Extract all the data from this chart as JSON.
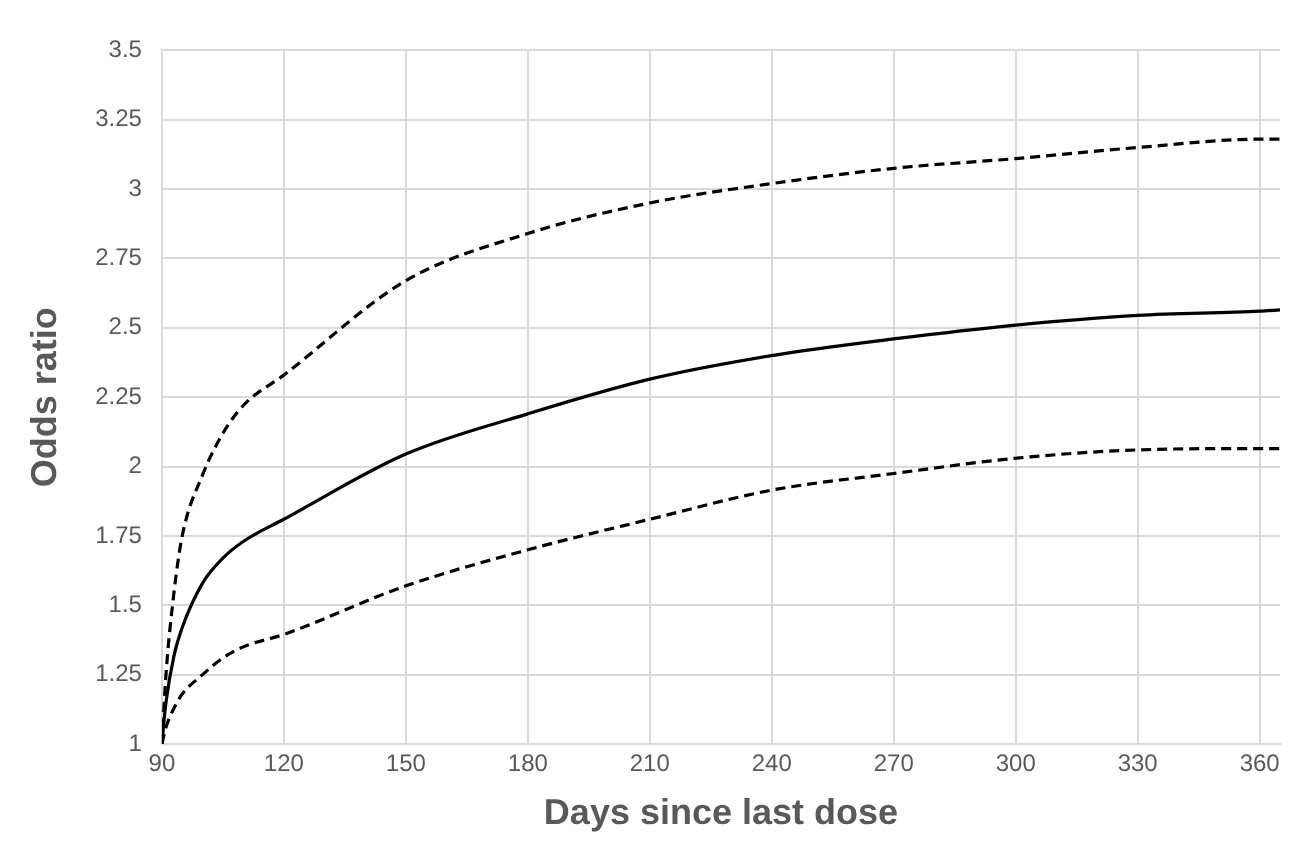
{
  "chart_data": {
    "type": "line",
    "xlabel": "Days since last dose",
    "ylabel": "Odds ratio",
    "xlim": [
      90,
      365
    ],
    "xticks": [
      90,
      120,
      150,
      180,
      210,
      240,
      270,
      300,
      330,
      360
    ],
    "ylim": [
      1,
      3.5
    ],
    "yticks": [
      1,
      1.25,
      1.5,
      1.75,
      2,
      2.25,
      2.5,
      2.75,
      3,
      3.25,
      3.5
    ],
    "grid": true,
    "legend": false,
    "marker": "none",
    "series": [
      {
        "color": "#000000",
        "line_style": "dashed",
        "x": [
          90,
          91,
          93,
          95,
          100,
          105,
          110,
          120,
          150,
          180,
          210,
          240,
          270,
          300,
          330,
          360,
          365
        ],
        "values": [
          1,
          1.25,
          1.55,
          1.75,
          1.97,
          2.12,
          2.22,
          2.33,
          2.67,
          2.84,
          2.95,
          3.02,
          3.075,
          3.11,
          3.15,
          3.18,
          3.18
        ]
      },
      {
        "color": "#000000",
        "line_style": "solid",
        "x": [
          90,
          91,
          93,
          95,
          100,
          105,
          110,
          120,
          150,
          180,
          210,
          240,
          270,
          300,
          330,
          360,
          365
        ],
        "values": [
          1,
          1.15,
          1.32,
          1.42,
          1.58,
          1.67,
          1.73,
          1.81,
          2.045,
          2.19,
          2.315,
          2.4,
          2.46,
          2.51,
          2.545,
          2.56,
          2.565
        ]
      },
      {
        "color": "#000000",
        "line_style": "dashed",
        "x": [
          90,
          91,
          93,
          95,
          100,
          105,
          110,
          120,
          150,
          180,
          210,
          240,
          270,
          300,
          330,
          360,
          365
        ],
        "values": [
          1,
          1.06,
          1.13,
          1.18,
          1.25,
          1.31,
          1.35,
          1.395,
          1.57,
          1.7,
          1.81,
          1.915,
          1.975,
          2.03,
          2.06,
          2.065,
          2.065
        ]
      }
    ]
  }
}
